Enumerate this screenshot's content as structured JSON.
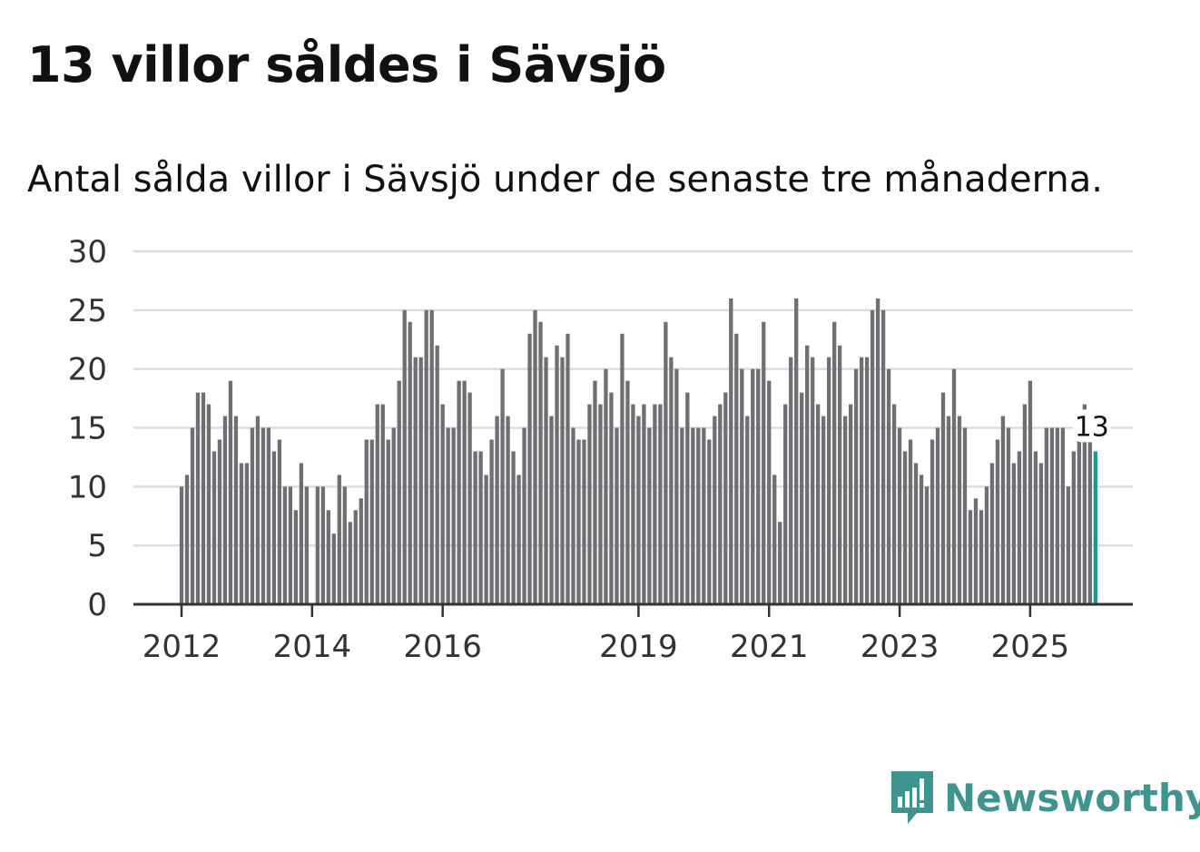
{
  "chart_data": {
    "type": "bar",
    "title": "13 villor såldes i Sävsjö",
    "subtitle": "Antal sålda villor i Sävsjö under de senaste tre månaderna.",
    "xlabel": "",
    "ylabel": "",
    "ylim": [
      0,
      30
    ],
    "yticks": [
      "0",
      "5",
      "10",
      "15",
      "20",
      "25",
      "30"
    ],
    "xtick_labels": [
      "2012",
      "2014",
      "2016",
      "2019",
      "2021",
      "2023",
      "2025"
    ],
    "xtick_indices": [
      0,
      24,
      48,
      84,
      108,
      132,
      156
    ],
    "grid": true,
    "values": [
      10,
      11,
      15,
      18,
      18,
      17,
      13,
      14,
      16,
      19,
      16,
      12,
      12,
      15,
      16,
      15,
      15,
      13,
      14,
      10,
      10,
      8,
      12,
      10,
      0,
      10,
      10,
      8,
      6,
      11,
      10,
      7,
      8,
      9,
      14,
      14,
      17,
      17,
      14,
      15,
      19,
      25,
      24,
      21,
      21,
      25,
      25,
      22,
      17,
      15,
      15,
      19,
      19,
      18,
      13,
      13,
      11,
      14,
      16,
      20,
      16,
      13,
      11,
      15,
      23,
      25,
      24,
      21,
      16,
      22,
      21,
      23,
      15,
      14,
      14,
      17,
      19,
      17,
      20,
      18,
      15,
      23,
      19,
      17,
      16,
      17,
      15,
      17,
      17,
      24,
      21,
      20,
      15,
      18,
      15,
      15,
      15,
      14,
      16,
      17,
      18,
      26,
      23,
      20,
      16,
      20,
      20,
      24,
      19,
      11,
      7,
      17,
      21,
      26,
      18,
      22,
      21,
      17,
      16,
      21,
      24,
      22,
      16,
      17,
      20,
      21,
      21,
      25,
      26,
      25,
      20,
      17,
      15,
      13,
      14,
      12,
      11,
      10,
      14,
      15,
      18,
      16,
      20,
      16,
      15,
      8,
      9,
      8,
      10,
      12,
      14,
      16,
      15,
      12,
      13,
      17,
      19,
      13,
      12,
      15,
      15,
      15,
      15,
      10,
      13,
      16,
      17,
      14,
      13
    ],
    "highlight_index": 168,
    "highlight_label": "13",
    "colors": {
      "bar": "#6e6e73",
      "highlight": "#1a9a8e",
      "grid": "#dddddd",
      "axis": "#333333"
    }
  },
  "logo": {
    "text": "Newsworthy",
    "color": "#3f9490"
  }
}
